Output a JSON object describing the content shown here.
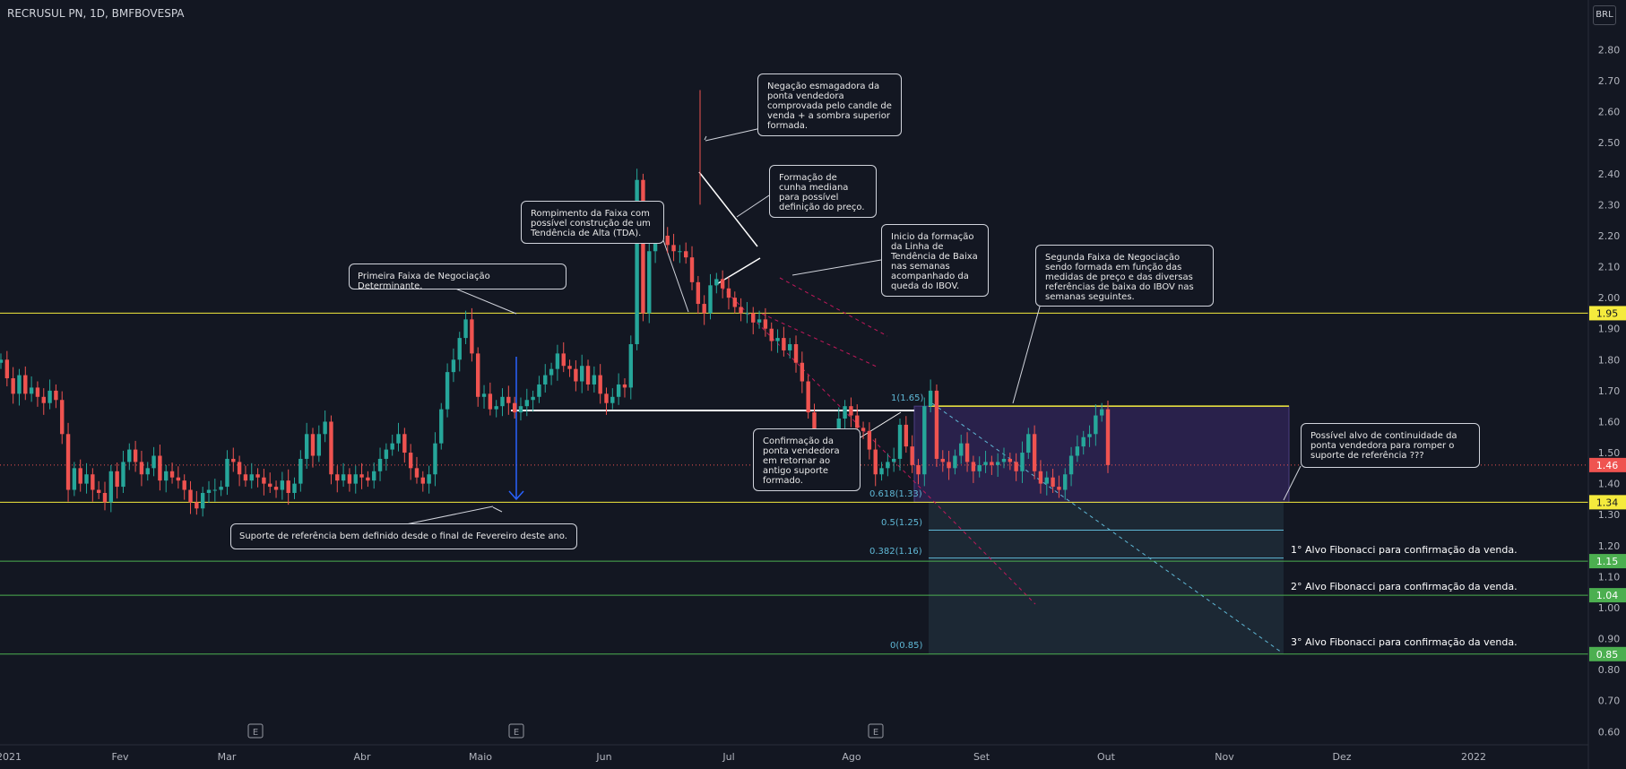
{
  "symbol_title": "RECRUSUL PN, 1D, BMFBOVESPA",
  "currency": "BRL",
  "colors": {
    "background": "#131722",
    "up": "#26a69a",
    "down": "#ef5350",
    "yellow_line": "#f5eb3d",
    "green_line": "#4caf50",
    "fib_line": "#5fb8d6",
    "zone_fill": "#3b2a6e"
  },
  "chart_data": {
    "type": "candlestick",
    "y_axis": {
      "range": [
        0.55,
        2.89
      ],
      "ticks": [
        2.8,
        2.7,
        2.6,
        2.5,
        2.4,
        2.3,
        2.2,
        2.1,
        2.0,
        1.9,
        1.8,
        1.7,
        1.6,
        1.5,
        1.4,
        1.3,
        1.2,
        1.1,
        1.0,
        0.9,
        0.8,
        0.7,
        0.6
      ],
      "tick_labels": [
        "2.80",
        "2.70",
        "2.60",
        "2.50",
        "2.40",
        "2.30",
        "2.20",
        "2.10",
        "2.00",
        "1.90",
        "1.80",
        "1.70",
        "1.60",
        "1.50",
        "1.40",
        "1.30",
        "1.20",
        "1.10",
        "1.00",
        "0.90",
        "0.80",
        "0.70",
        "0.60"
      ]
    },
    "x_axis": {
      "labels": [
        "2021",
        "Fev",
        "Mar",
        "Abr",
        "Maio",
        "Jun",
        "Jul",
        "Ago",
        "Set",
        "Out",
        "Nov",
        "Dez",
        "2022"
      ]
    },
    "price_markers": [
      {
        "value": 1.95,
        "label": "1.95",
        "color": "#f5eb3d"
      },
      {
        "value": 1.46,
        "label": "1.46",
        "color": "#ef5350"
      },
      {
        "value": 1.34,
        "label": "1.34",
        "color": "#f5eb3d"
      },
      {
        "value": 1.15,
        "label": "1.15",
        "color": "#4caf50"
      },
      {
        "value": 1.04,
        "label": "1.04",
        "color": "#4caf50"
      },
      {
        "value": 0.85,
        "label": "0.85",
        "color": "#4caf50"
      }
    ],
    "horizontal_lines": [
      {
        "value": 1.95,
        "color": "#f5eb3d"
      },
      {
        "value": 1.34,
        "color": "#f5eb3d"
      },
      {
        "value": 1.15,
        "color": "#4caf50"
      },
      {
        "value": 1.04,
        "color": "#4caf50"
      },
      {
        "value": 0.85,
        "color": "#4caf50"
      }
    ],
    "fibonacci": [
      {
        "level": "1",
        "value": 1.65,
        "label": "1(1.65)"
      },
      {
        "level": "0.618",
        "value": 1.33,
        "label": "0.618(1.33)"
      },
      {
        "level": "0.5",
        "value": 1.25,
        "label": "0.5(1.25)"
      },
      {
        "level": "0.382",
        "value": 1.16,
        "label": "0.382(1.16)"
      },
      {
        "level": "0",
        "value": 0.85,
        "label": "0(0.85)"
      }
    ],
    "closes": [
      1.8,
      1.74,
      1.69,
      1.75,
      1.69,
      1.71,
      1.68,
      1.66,
      1.7,
      1.67,
      1.56,
      1.38,
      1.45,
      1.4,
      1.43,
      1.38,
      1.37,
      1.34,
      1.44,
      1.39,
      1.47,
      1.51,
      1.47,
      1.43,
      1.45,
      1.49,
      1.41,
      1.44,
      1.42,
      1.41,
      1.38,
      1.34,
      1.32,
      1.37,
      1.38,
      1.38,
      1.39,
      1.48,
      1.47,
      1.43,
      1.41,
      1.43,
      1.42,
      1.4,
      1.39,
      1.38,
      1.41,
      1.37,
      1.4,
      1.48,
      1.56,
      1.49,
      1.56,
      1.6,
      1.43,
      1.41,
      1.43,
      1.4,
      1.43,
      1.42,
      1.41,
      1.44,
      1.48,
      1.51,
      1.53,
      1.56,
      1.5,
      1.45,
      1.42,
      1.4,
      1.43,
      1.53,
      1.64,
      1.76,
      1.8,
      1.87,
      1.93,
      1.82,
      1.68,
      1.69,
      1.64,
      1.65,
      1.68,
      1.66,
      1.63,
      1.65,
      1.67,
      1.68,
      1.72,
      1.75,
      1.77,
      1.82,
      1.78,
      1.77,
      1.73,
      1.78,
      1.72,
      1.75,
      1.69,
      1.66,
      1.68,
      1.72,
      1.71,
      1.85,
      2.38,
      1.95,
      2.15,
      2.25,
      2.2,
      2.17,
      2.15,
      2.15,
      2.13,
      2.05,
      1.98,
      1.95,
      2.04,
      2.06,
      2.03,
      2.0,
      1.97,
      1.95,
      1.95,
      1.92,
      1.93,
      1.9,
      1.86,
      1.87,
      1.83,
      1.85,
      1.79,
      1.73,
      1.63,
      1.45,
      1.42,
      1.48,
      1.55,
      1.61,
      1.65,
      1.62,
      1.58,
      1.57,
      1.51,
      1.43,
      1.45,
      1.47,
      1.48,
      1.59,
      1.52,
      1.46,
      1.43,
      1.65,
      1.7,
      1.48,
      1.47,
      1.45,
      1.49,
      1.53,
      1.47,
      1.44,
      1.46,
      1.47,
      1.46,
      1.47,
      1.48,
      1.47,
      1.44,
      1.5,
      1.56,
      1.44,
      1.4,
      1.42,
      1.39,
      1.38,
      1.43,
      1.49,
      1.52,
      1.55,
      1.56,
      1.62,
      1.64,
      1.46
    ],
    "x_start": 1,
    "x_end": 1236
  },
  "annotations": {
    "primeira": "Primeira Faixa de Negociação Determinante.",
    "suporte": "Suporte de referência bem definido desde o final de Fevereiro deste ano.",
    "rompimento": "Rompimento da Faixa com possível construção de um Tendência de Alta (TDA).",
    "negacao": "Negação esmagadora da ponta vendedora comprovada pelo candle de venda + a sombra superior formada.",
    "cunha": "Formação de cunha mediana para possível definição do preço.",
    "inicio": "Inicio da formação da Linha de Tendência de Baixa nas semanas acompanhado da queda do IBOV.",
    "confirmacao": "Confirmação da ponta vendedora em retornar ao antigo suporte formado.",
    "segunda": "Segunda Faixa de Negociação sendo formada em função das medidas de preço e das diversas referências de baixa do IBOV nas semanas seguintes.",
    "possivel": "Possível alvo de continuidade da ponta vendedora para romper o suporte de referência ???",
    "alvo1": "1° Alvo Fibonacci para confirmação da venda.",
    "alvo2": "2° Alvo Fibonacci para confirmação da venda.",
    "alvo3": "3° Alvo Fibonacci para confirmação da venda."
  },
  "earnings_marker": "E"
}
